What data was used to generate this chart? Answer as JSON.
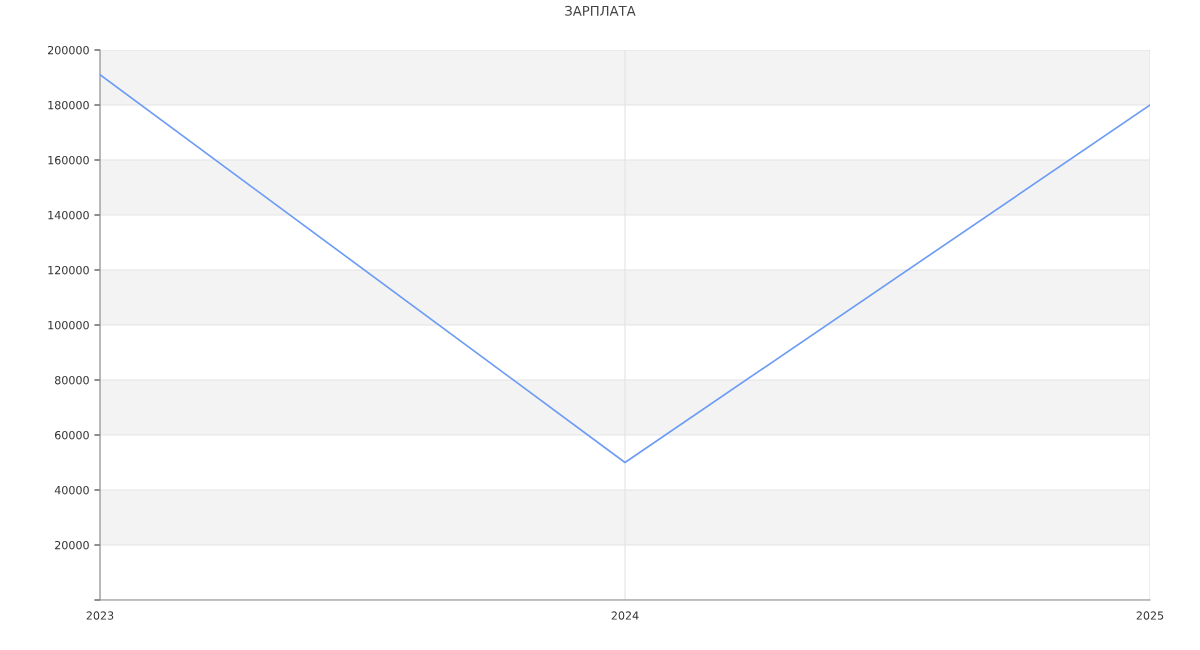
{
  "chart_data": {
    "type": "line",
    "title": "ЗАРПЛАТА",
    "x": [
      2023,
      2024,
      2025
    ],
    "series": [
      {
        "color": "#6d9cf5",
        "values": [
          191000,
          50000,
          180000
        ]
      }
    ],
    "xlim": [
      2023,
      2025
    ],
    "xticks": [
      2023,
      2024,
      2025
    ],
    "ylim": [
      0,
      200000
    ],
    "yticks": [
      {
        "value": 0,
        "label": null
      },
      20000,
      40000,
      60000,
      80000,
      100000,
      120000,
      140000,
      160000,
      180000,
      200000
    ],
    "bands": [
      {
        "axis": "y",
        "from": 20000,
        "to": 40000,
        "color": "#f3f3f3"
      },
      {
        "axis": "y",
        "from": 60000,
        "to": 80000,
        "color": "#f3f3f3"
      },
      {
        "axis": "y",
        "from": 100000,
        "to": 120000,
        "color": "#f3f3f3"
      },
      {
        "axis": "y",
        "from": 140000,
        "to": 160000,
        "color": "#f3f3f3"
      },
      {
        "axis": "y",
        "from": 180000,
        "to": 200000,
        "color": "#f3f3f3"
      }
    ],
    "grid": true,
    "legend": false,
    "marker": "none",
    "line_style": "solid"
  }
}
